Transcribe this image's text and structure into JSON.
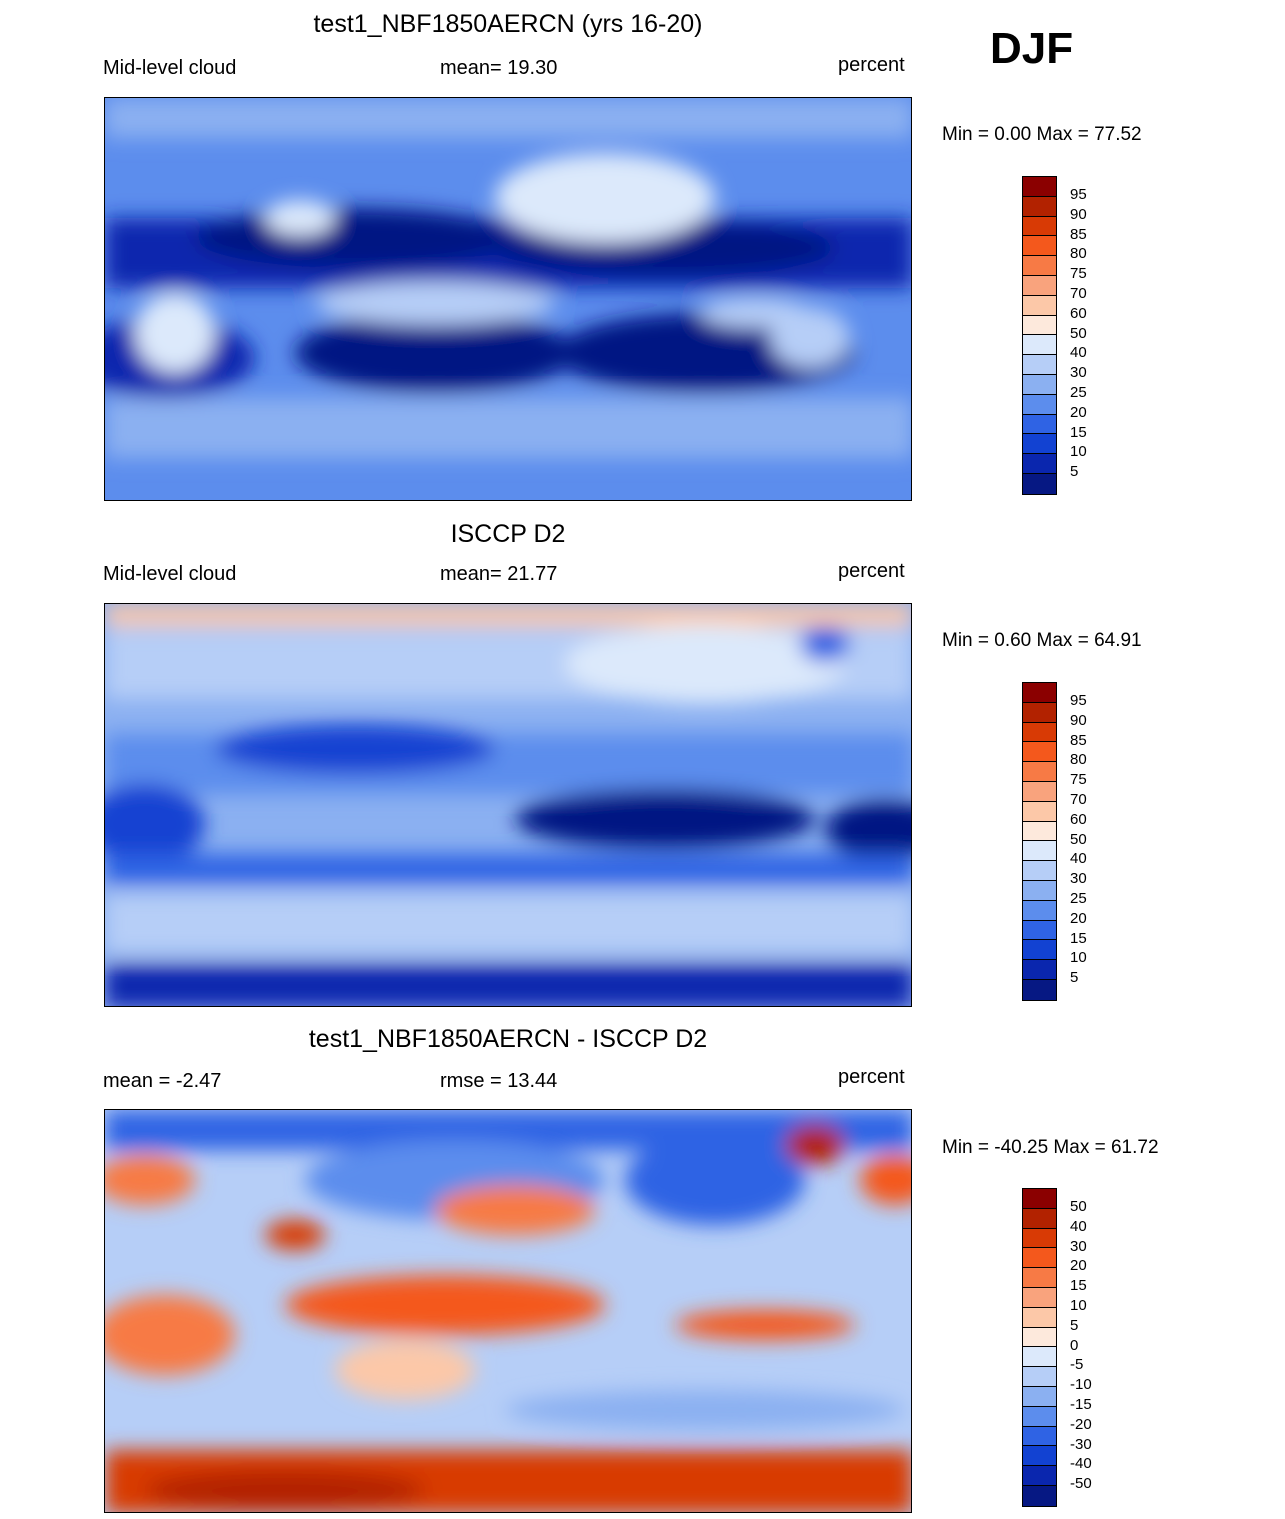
{
  "season": "DJF",
  "panels": [
    {
      "title": "test1_NBF1850AERCN (yrs 16-20)",
      "left_label": "Mid-level cloud",
      "center_label": "mean=  19.30",
      "right_label": "percent",
      "minmax": "Min =   0.00 Max =  77.52",
      "colorbar_ticks": [
        "95",
        "90",
        "85",
        "80",
        "75",
        "70",
        "60",
        "50",
        "40",
        "30",
        "25",
        "20",
        "15",
        "10",
        "5"
      ]
    },
    {
      "title": "ISCCP D2",
      "left_label": "Mid-level cloud",
      "center_label": "mean=  21.77",
      "right_label": "percent",
      "minmax": "Min =   0.60 Max =  64.91",
      "colorbar_ticks": [
        "95",
        "90",
        "85",
        "80",
        "75",
        "70",
        "60",
        "50",
        "40",
        "30",
        "25",
        "20",
        "15",
        "10",
        "5"
      ]
    },
    {
      "title": "test1_NBF1850AERCN - ISCCP D2",
      "left_label": "mean =  -2.47",
      "center_label": "rmse =  13.44",
      "right_label": "percent",
      "minmax": "Min = -40.25 Max =  61.72",
      "colorbar_ticks": [
        "50",
        "40",
        "30",
        "20",
        "15",
        "10",
        "5",
        "0",
        "-5",
        "-10",
        "-15",
        "-20",
        "-30",
        "-40",
        "-50"
      ]
    }
  ],
  "colorbar_colors": [
    "#8b0000",
    "#b22200",
    "#d83a05",
    "#f4581c",
    "#f77a45",
    "#f9a37d",
    "#fcc8a8",
    "#fde9dc",
    "#dce9fb",
    "#b6cef7",
    "#8bb0f1",
    "#5c8ded",
    "#2f63e4",
    "#1242d2",
    "#0a26ae",
    "#061883"
  ]
}
